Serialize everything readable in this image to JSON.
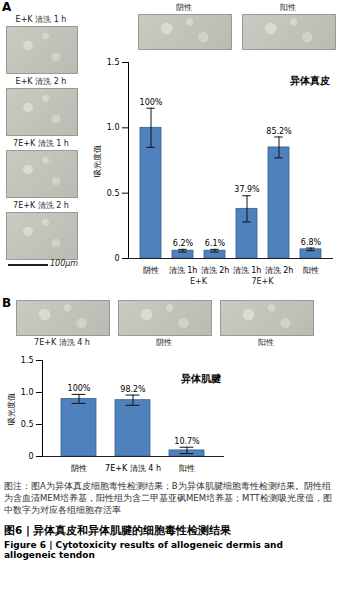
{
  "panels": [
    {
      "letter": "A",
      "side_images": [
        "E+K 清洗 1 h",
        "E+K 清洗 2 h",
        "7E+K 清洗 1 h",
        "7E+K 清洗 2 h"
      ],
      "top_images": [
        "阴性",
        "阳性"
      ],
      "scale_bar": "100μm"
    },
    {
      "letter": "B",
      "top_images": [
        "7E+K 清洗 4 h",
        "阴性",
        "阳性"
      ]
    }
  ],
  "chart_data": [
    {
      "type": "bar",
      "title": "异体真皮",
      "y_label": "吸光度值",
      "categories": [
        "阴性",
        "清洗 1h",
        "清洗 2h",
        "清洗 1h",
        "清洗 2h",
        "阳性"
      ],
      "group_labels": [
        null,
        "E+K",
        "E+K",
        "7E+K",
        "7E+K",
        null
      ],
      "values": [
        1.0,
        0.06,
        0.06,
        0.38,
        0.85,
        0.07
      ],
      "errors": [
        0.15,
        0.01,
        0.01,
        0.1,
        0.08,
        0.01
      ],
      "rate_labels": [
        "100%",
        "6.2%",
        "6.1%",
        "37.9%",
        "85.2%",
        "6.8%"
      ],
      "color": "#4f81bd",
      "ylim": [
        0,
        1.5
      ],
      "yticks": [
        0,
        0.5,
        {
          "value": 1,
          "label": "1.0"
        },
        1.5
      ]
    },
    {
      "type": "bar",
      "title": "异体肌腱",
      "y_label": "吸光度值",
      "categories": [
        "阴性",
        "7E+K 清洗 4 h",
        "阳性"
      ],
      "values": [
        0.9,
        0.88,
        0.095
      ],
      "errors": [
        0.07,
        0.08,
        0.05
      ],
      "rate_labels": [
        "100%",
        "98.2%",
        "10.7%"
      ],
      "color": "#4f81bd",
      "ylim": [
        0,
        1.5
      ],
      "yticks": [
        0,
        0.5,
        {
          "value": 1,
          "label": "1.0"
        },
        1.5
      ]
    }
  ],
  "caption": {
    "note": "图注：图A为异体真皮细胞毒性检测结果；B为异体肌腱细胞毒性检测结果。阴性组为含血清MEM培养基，阳性组为含二甲基亚砜MEM培养基；MTT检测吸光度值，图中数字为对应各组细胞存活率",
    "title_zh": "图6 | 异体真皮和异体肌腱的细胞毒性检测结果",
    "title_en": "Figure 6 | Cytotoxicity results of allogeneic dermis and allogeneic tendon"
  }
}
